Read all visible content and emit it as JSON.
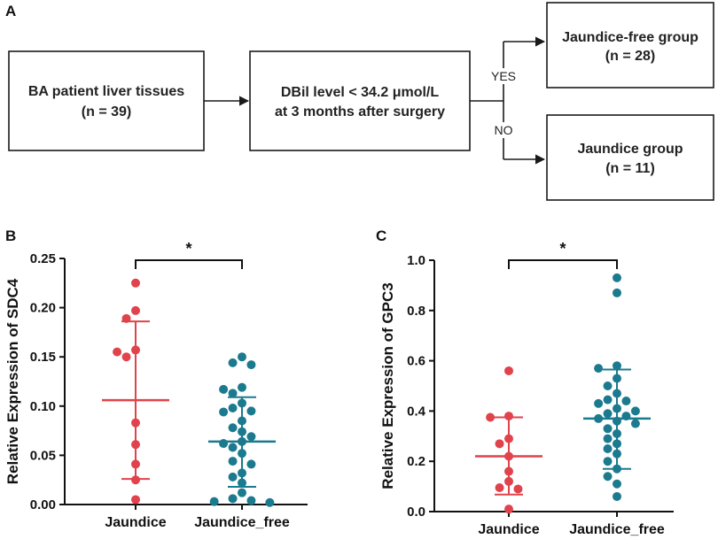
{
  "panel_a": {
    "label": "A",
    "box1_line1": "BA patient liver tissues",
    "box1_line2": "(n = 39)",
    "box2_line1": "DBil level < 34.2 μmol/L",
    "box2_line2": "at 3 months after surgery",
    "yes_label": "YES",
    "no_label": "NO",
    "box3_line1": "Jaundice-free group",
    "box3_line2": "(n = 28)",
    "box4_line1": "Jaundice group",
    "box4_line2": "(n = 11)"
  },
  "colors": {
    "jaundice": "#E0434B",
    "jaundice_free": "#1B7A8E",
    "box_stroke": "#1a1a1a"
  },
  "chart_data": [
    {
      "panel": "B",
      "type": "scatter",
      "ylabel": "Relative Expression of SDC4",
      "categories": [
        "Jaundice",
        "Jaundice_free"
      ],
      "ylim": [
        0,
        0.25
      ],
      "yticks": [
        "0.00",
        "0.05",
        "0.10",
        "0.15",
        "0.20",
        "0.25"
      ],
      "significance": "*",
      "series": [
        {
          "name": "Jaundice",
          "mean": 0.106,
          "sd_low": 0.026,
          "sd_high": 0.186,
          "points": [
            0.225,
            0.197,
            0.189,
            0.157,
            0.155,
            0.15,
            0.083,
            0.061,
            0.041,
            0.025,
            0.005
          ]
        },
        {
          "name": "Jaundice_free",
          "mean": 0.064,
          "sd_low": 0.018,
          "sd_high": 0.109,
          "points": [
            0.15,
            0.144,
            0.142,
            0.119,
            0.117,
            0.113,
            0.103,
            0.098,
            0.095,
            0.094,
            0.085,
            0.078,
            0.074,
            0.069,
            0.064,
            0.062,
            0.058,
            0.052,
            0.044,
            0.041,
            0.032,
            0.028,
            0.022,
            0.012,
            0.006,
            0.004,
            0.003,
            0.002
          ]
        }
      ]
    },
    {
      "panel": "C",
      "type": "scatter",
      "ylabel": "Relative Expression of GPC3",
      "categories": [
        "Jaundice",
        "Jaundice_free"
      ],
      "ylim": [
        0,
        1.0
      ],
      "yticks": [
        "0.0",
        "0.2",
        "0.4",
        "0.6",
        "0.8",
        "1.0"
      ],
      "significance": "*",
      "series": [
        {
          "name": "Jaundice",
          "mean": 0.22,
          "sd_low": 0.068,
          "sd_high": 0.375,
          "points": [
            0.56,
            0.38,
            0.375,
            0.29,
            0.27,
            0.22,
            0.16,
            0.12,
            0.095,
            0.09,
            0.01
          ]
        },
        {
          "name": "Jaundice_free",
          "mean": 0.37,
          "sd_low": 0.17,
          "sd_high": 0.565,
          "points": [
            0.93,
            0.87,
            0.58,
            0.57,
            0.53,
            0.5,
            0.47,
            0.445,
            0.44,
            0.43,
            0.41,
            0.4,
            0.39,
            0.38,
            0.37,
            0.36,
            0.35,
            0.33,
            0.31,
            0.29,
            0.27,
            0.25,
            0.23,
            0.2,
            0.17,
            0.14,
            0.11,
            0.06
          ]
        }
      ]
    }
  ]
}
